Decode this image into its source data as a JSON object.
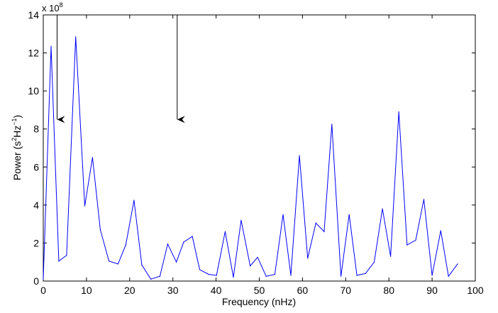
{
  "chart_data": {
    "type": "line",
    "title": "",
    "xlabel": "Frequency (nHz)",
    "ylabel": {
      "prefix": "Power (s",
      "sup1": "2",
      "mid": "Hz",
      "sup2": "−1",
      "suffix": ")"
    },
    "y_multiplier": {
      "base": "x 10",
      "exponent": "8"
    },
    "xlim": [
      0,
      100
    ],
    "ylim": [
      0,
      14
    ],
    "xticks": [
      0,
      10,
      20,
      30,
      40,
      50,
      60,
      70,
      80,
      90,
      100
    ],
    "yticks": [
      0,
      2,
      4,
      6,
      8,
      10,
      12,
      14
    ],
    "grid": false,
    "line_color": "#0000ff",
    "arrows": [
      {
        "x": 3.2,
        "y_from": 14,
        "y_to": 8.5
      },
      {
        "x": 31,
        "y_from": 14,
        "y_to": 8.5
      }
    ],
    "series": [
      {
        "x": [
          0,
          1.8,
          3.6,
          5.4,
          7.5,
          9.6,
          11.4,
          13.2,
          15.2,
          17.3,
          19.1,
          21.0,
          22.8,
          24.9,
          27.0,
          28.8,
          30.8,
          32.5,
          34.5,
          36.2,
          38.3,
          40.1,
          42.1,
          44.0,
          45.8,
          47.9,
          49.6,
          51.6,
          53.6,
          55.5,
          57.3,
          59.3,
          61.2,
          63.1,
          65.0,
          66.8,
          68.9,
          70.8,
          72.6,
          74.6,
          76.6,
          78.5,
          80.4,
          82.3,
          84.2,
          86.2,
          88.1,
          90.0,
          92.0,
          93.8,
          95.9
        ],
        "y": [
          0.1,
          12.35,
          1.05,
          1.35,
          12.85,
          3.95,
          6.5,
          2.7,
          1.05,
          0.9,
          1.9,
          4.25,
          0.85,
          0.1,
          0.25,
          1.95,
          1.0,
          2.05,
          2.35,
          0.6,
          0.35,
          0.3,
          2.6,
          0.2,
          3.2,
          0.8,
          1.25,
          0.25,
          0.35,
          3.5,
          0.3,
          6.6,
          1.2,
          3.05,
          2.6,
          8.25,
          0.25,
          3.5,
          0.3,
          0.4,
          1.0,
          3.8,
          1.3,
          8.9,
          1.9,
          2.15,
          4.3,
          0.3,
          2.65,
          0.25,
          0.9
        ]
      }
    ]
  }
}
